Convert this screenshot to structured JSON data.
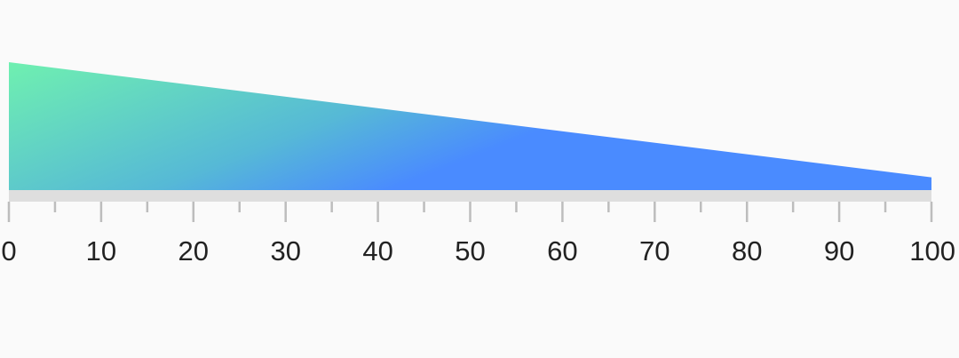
{
  "chart_data": {
    "type": "area",
    "x": [
      0,
      100
    ],
    "values": [
      100,
      10
    ],
    "xlim": [
      0,
      100
    ],
    "ylim": [
      0,
      100
    ],
    "major_ticks": [
      0,
      10,
      20,
      30,
      40,
      50,
      60,
      70,
      80,
      90,
      100
    ],
    "tick_labels": [
      "0",
      "10",
      "20",
      "30",
      "40",
      "50",
      "60",
      "70",
      "80",
      "90",
      "100"
    ],
    "minor_ticks": [
      5,
      15,
      25,
      35,
      45,
      55,
      65,
      75,
      85,
      95
    ],
    "gradient_colors": [
      "#6ff0b0",
      "#4a8bff"
    ],
    "track_color": "#dedede",
    "tick_color": "#bdbdbd",
    "label_color": "#222222"
  }
}
